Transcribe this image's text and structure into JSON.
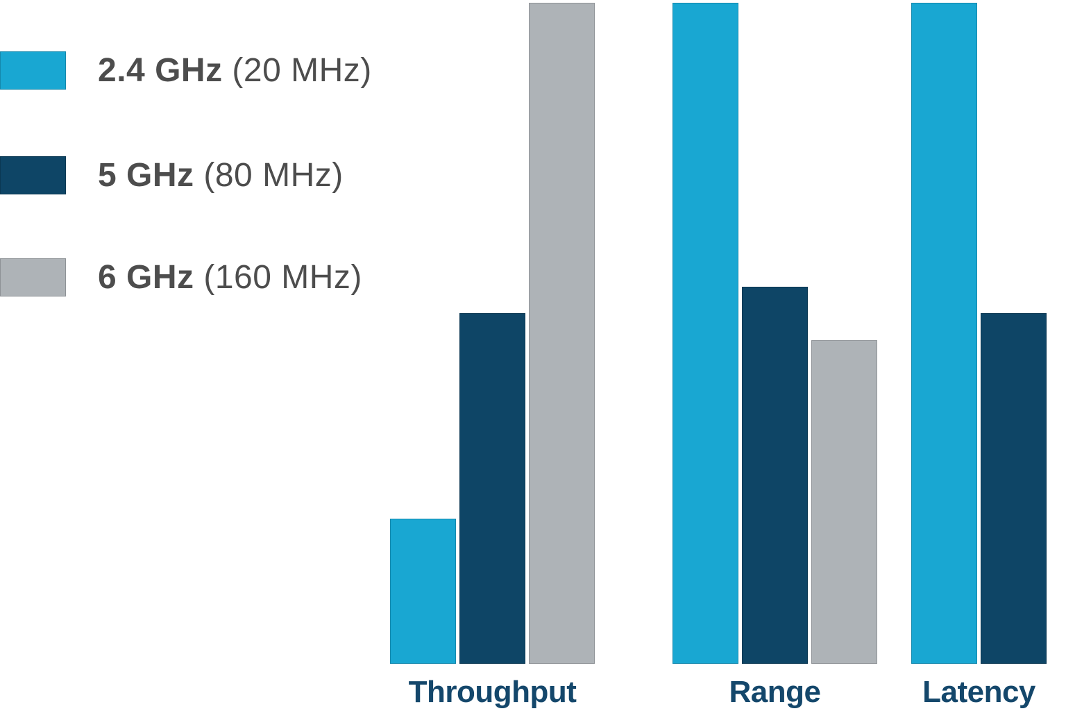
{
  "background_color": "#ffffff",
  "legend": {
    "items": [
      {
        "band": "2.4 GHz",
        "bandwidth": "(20 MHz)",
        "color": "#19a7d2"
      },
      {
        "band": "5 GHz",
        "bandwidth": "(80 MHz)",
        "color": "#0e4566"
      },
      {
        "band": "6 GHz",
        "bandwidth": "(160 MHz)",
        "color": "#aeb3b7"
      }
    ],
    "text_color": "#4d4d4d"
  },
  "chart_data": {
    "type": "bar",
    "categories": [
      "Throughput",
      "Range",
      "Latency"
    ],
    "series": [
      {
        "name": "2.4 GHz (20 MHz)",
        "color": "#19a7d2",
        "values": [
          22,
          100,
          100
        ]
      },
      {
        "name": "5 GHz (80 MHz)",
        "color": "#0e4566",
        "values": [
          53,
          57,
          53
        ]
      },
      {
        "name": "6 GHz (160 MHz)",
        "color": "#aeb3b7",
        "values": [
          100,
          49,
          null
        ]
      }
    ],
    "ylim": [
      0,
      100
    ],
    "value_note": "qualitative chart; no numeric axis shown — values are bar heights as % of tallest bar",
    "xlabel": "",
    "ylabel": "",
    "title": "",
    "grid": false,
    "legend_position": "top-left",
    "category_label_color": "#14476b"
  }
}
